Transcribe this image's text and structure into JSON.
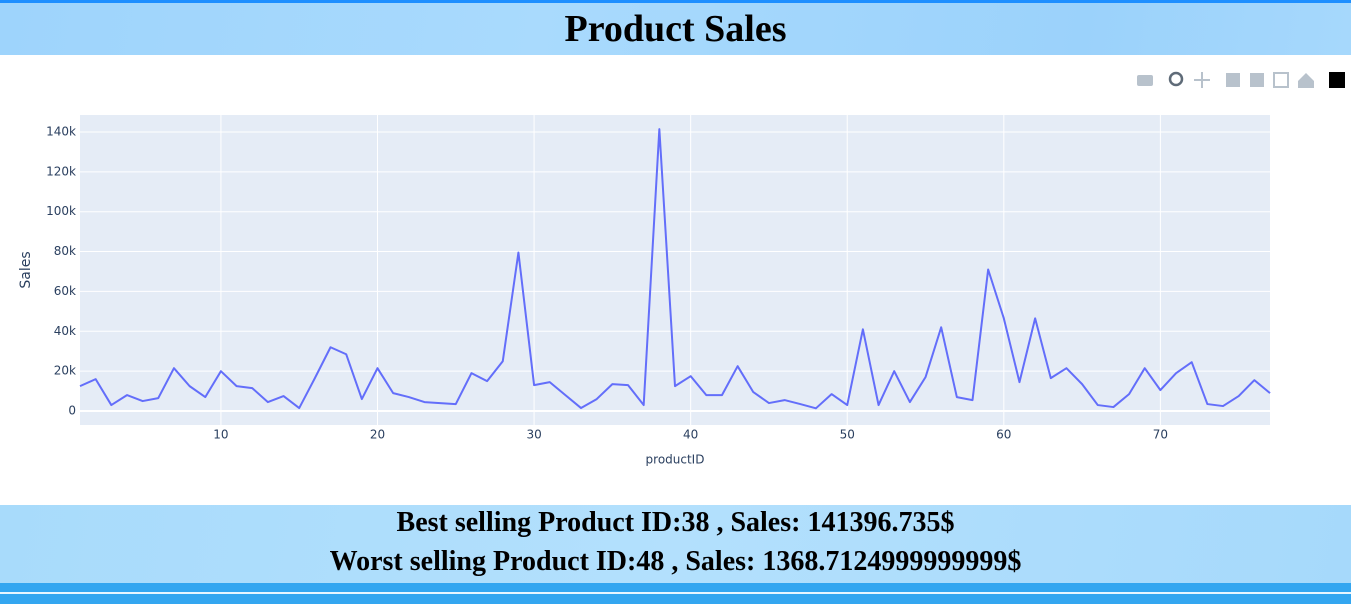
{
  "header": {
    "title": "Product Sales"
  },
  "chart_data": {
    "type": "line",
    "x_label": "productID",
    "y_label": "Sales",
    "x": [
      1,
      2,
      3,
      4,
      5,
      6,
      7,
      8,
      9,
      10,
      11,
      12,
      13,
      14,
      15,
      16,
      17,
      18,
      19,
      20,
      21,
      22,
      23,
      24,
      25,
      26,
      27,
      28,
      29,
      30,
      31,
      32,
      33,
      34,
      35,
      36,
      37,
      38,
      39,
      40,
      41,
      42,
      43,
      44,
      45,
      46,
      47,
      48,
      49,
      50,
      51,
      52,
      53,
      54,
      55,
      56,
      57,
      58,
      59,
      60,
      61,
      62,
      63,
      64,
      65,
      66,
      67,
      68,
      69,
      70,
      71,
      72,
      73,
      74,
      75,
      76,
      77
    ],
    "series": [
      {
        "name": "Sales",
        "color": "#636efa",
        "values": [
          12500,
          16000,
          3000,
          8000,
          5000,
          6500,
          21500,
          12500,
          7000,
          20000,
          12500,
          11500,
          4500,
          7500,
          1500,
          16500,
          32000,
          28500,
          6000,
          21500,
          9000,
          7000,
          4500,
          4000,
          3500,
          19000,
          15000,
          25000,
          79500,
          13000,
          14500,
          8000,
          1500,
          6000,
          13500,
          13000,
          3000,
          141396.735,
          12500,
          17500,
          8000,
          8000,
          22500,
          9500,
          4000,
          5500,
          3500,
          1368.7125,
          8500,
          3000,
          41000,
          3000,
          20000,
          4500,
          17000,
          42000,
          7000,
          5500,
          71000,
          46500,
          14500,
          46500,
          16500,
          21500,
          13500,
          3000,
          2000,
          8500,
          21500,
          10500,
          19000,
          24500,
          3500,
          2500,
          7500,
          15500,
          9000
        ]
      }
    ],
    "xlim": [
      1,
      77
    ],
    "xticks": [
      10,
      20,
      30,
      40,
      50,
      60,
      70
    ],
    "ylim": [
      -7000,
      148500
    ],
    "yticks": [
      0,
      {
        "value": 20000,
        "label": "20k"
      },
      {
        "value": 40000,
        "label": "40k"
      },
      {
        "value": 60000,
        "label": "60k"
      },
      {
        "value": 80000,
        "label": "80k"
      },
      {
        "value": 100000,
        "label": "100k"
      },
      {
        "value": 120000,
        "label": "120k"
      },
      {
        "value": 140000,
        "label": "140k"
      }
    ],
    "grid": true
  },
  "footer": {
    "best": "Best selling Product ID:38 , Sales: 141396.735$",
    "worst": "Worst selling Product ID:48 , Sales: 1368.7124999999999$"
  }
}
